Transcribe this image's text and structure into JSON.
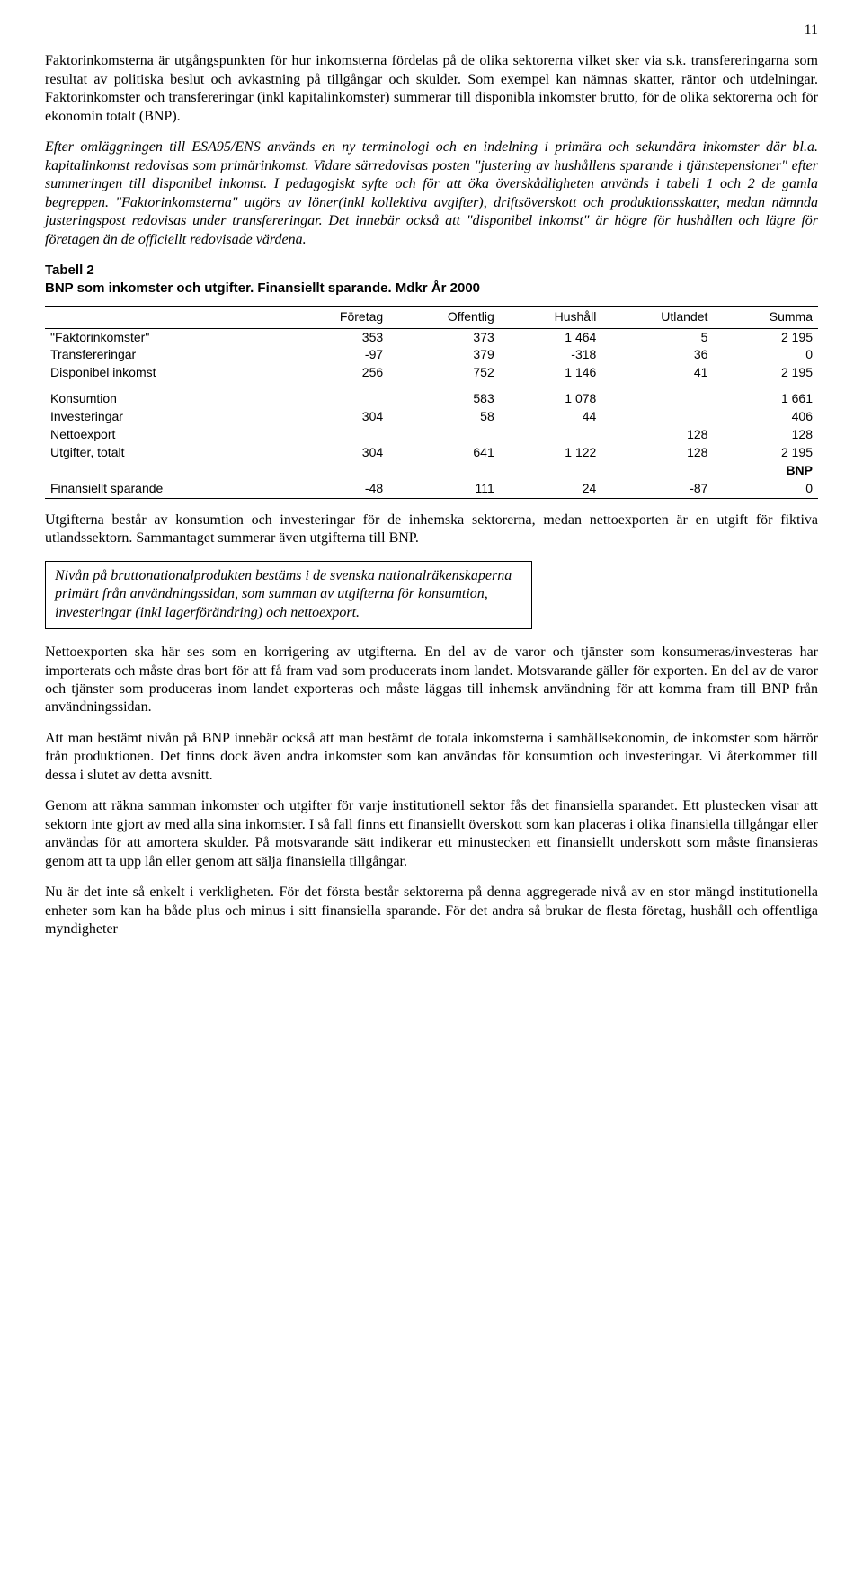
{
  "page_number": "11",
  "paragraphs": {
    "p1": "Faktorinkomsterna är utgångspunkten för hur inkomsterna fördelas på de olika sektorerna vilket sker via s.k. transfereringarna som resultat av politiska beslut och avkastning på tillgångar och skulder. Som exempel kan nämnas skatter, räntor och utdelningar. Faktorinkomster och transfereringar (inkl kapitalinkomster) summerar till disponibla inkomster brutto, för de olika sektorerna och för ekonomin totalt (BNP).",
    "p2": "Efter omläggningen till ESA95/ENS används en ny terminologi och en indelning i primära och sekundära inkomster där bl.a. kapitalinkomst redovisas som primärinkomst. Vidare särredovisas posten \"justering av hushållens sparande i tjänstepensioner\" efter summeringen till disponibel inkomst. I pedagogiskt syfte och för att öka överskådligheten används i tabell 1 och 2 de gamla begreppen. \"Faktorinkomsterna\" utgörs av löner(inkl kollektiva avgifter), driftsöverskott och produktionsskatter, medan nämnda justeringspost redovisas under transfereringar. Det innebär också att \"disponibel inkomst\" är högre för hushållen och lägre för företagen än de officiellt redovisade värdena.",
    "p3": "Utgifterna består av konsumtion och investeringar för de inhemska sektorerna, medan nettoexporten är en utgift för fiktiva utlandssektorn. Sammantaget summerar även utgifterna till BNP.",
    "boxed": "Nivån på bruttonationalprodukten bestäms i de svenska nationalräkenskaperna primärt från användningssidan, som summan av utgifterna för konsumtion, investeringar (inkl lagerförändring) och nettoexport.",
    "p4": "Nettoexporten ska här ses som en korrigering av utgifterna. En del av de varor och tjänster som konsumeras/investeras har importerats och måste dras bort för att få fram vad som producerats inom landet. Motsvarande gäller för exporten. En del av de varor och tjänster som produceras inom landet exporteras och måste läggas till inhemsk användning för att komma fram till BNP från användningssidan.",
    "p5": "Att man bestämt nivån på BNP innebär också att man bestämt de totala inkomsterna i samhällsekonomin, de inkomster som härrör från produktionen. Det finns dock även andra inkomster som kan användas för konsumtion och investeringar. Vi återkommer till dessa i slutet av detta avsnitt.",
    "p6": "Genom att räkna samman inkomster och utgifter för varje institutionell sektor fås det finansiella sparandet. Ett plustecken visar att sektorn inte gjort av med alla sina inkomster. I så fall finns ett finansiellt överskott som kan placeras i olika finansiella tillgångar eller användas för att amortera skulder. På motsvarande sätt indikerar ett minustecken ett finansiellt underskott som måste finansieras genom att ta upp lån eller genom att sälja finansiella tillgångar.",
    "p7": "Nu är det inte så enkelt i verkligheten. För det första består sektorerna på denna aggregerade nivå av en stor mängd institutionella enheter som kan ha både plus och minus i sitt finansiella sparande. För det andra så brukar de flesta företag, hushåll och offentliga myndigheter"
  },
  "table": {
    "title_line1": "Tabell 2",
    "title_line2": "BNP som inkomster och utgifter. Finansiellt sparande. Mdkr År 2000",
    "columns": [
      "",
      "Företag",
      "Offentlig",
      "Hushåll",
      "Utlandet",
      "Summa"
    ],
    "rows": [
      {
        "label": "\"Faktorinkomster\"",
        "v": [
          "353",
          "373",
          "1 464",
          "5",
          "2 195"
        ]
      },
      {
        "label": "Transfereringar",
        "v": [
          "-97",
          "379",
          "-318",
          "36",
          "0"
        ]
      },
      {
        "label": "Disponibel inkomst",
        "v": [
          "256",
          "752",
          "1 146",
          "41",
          "2 195"
        ]
      }
    ],
    "rows2": [
      {
        "label": "Konsumtion",
        "v": [
          "",
          "583",
          "1 078",
          "",
          "1 661"
        ]
      },
      {
        "label": "Investeringar",
        "v": [
          "304",
          "58",
          "44",
          "",
          "406"
        ]
      },
      {
        "label": "Nettoexport",
        "v": [
          "",
          "",
          "",
          "128",
          "128"
        ]
      },
      {
        "label": "Utgifter, totalt",
        "v": [
          "304",
          "641",
          "1 122",
          "128",
          "2 195"
        ]
      }
    ],
    "bnp_label": "BNP",
    "last_row": {
      "label": "Finansiellt sparande",
      "v": [
        "-48",
        "111",
        "24",
        "-87",
        "0"
      ]
    }
  }
}
